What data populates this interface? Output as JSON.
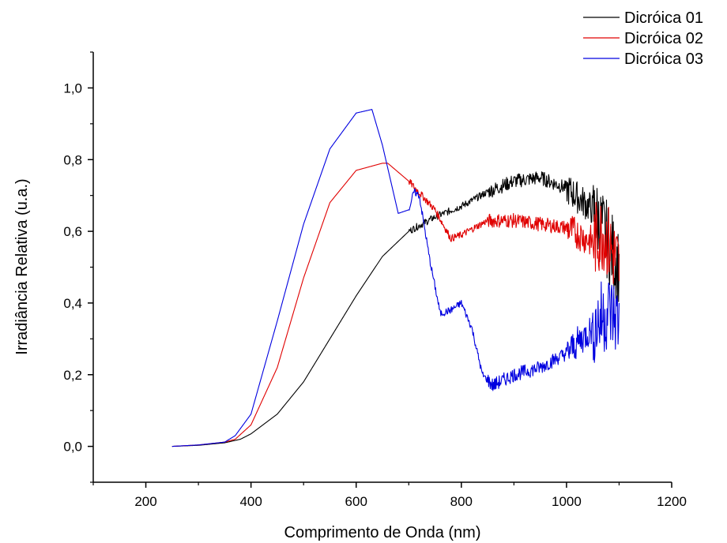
{
  "chart_data": {
    "type": "line",
    "xlabel": "Comprimento de Onda (nm)",
    "ylabel": "Irradiância Relativa (u.a.)",
    "xlim": [
      100,
      1200
    ],
    "ylim": [
      -0.1,
      1.1
    ],
    "x_ticks": [
      200,
      400,
      600,
      800,
      1000,
      1200
    ],
    "x_tick_labels": [
      "200",
      "400",
      "600",
      "800",
      "1000",
      "1200"
    ],
    "y_ticks": [
      0.0,
      0.2,
      0.4,
      0.6,
      0.8,
      1.0
    ],
    "y_tick_labels": [
      "0,0",
      "0,2",
      "0,4",
      "0,6",
      "0,8",
      "1,0"
    ],
    "grid": false,
    "legend_position": "top-right",
    "series": [
      {
        "name": "Dicróica 01",
        "color": "#000000",
        "x": [
          250,
          300,
          350,
          380,
          400,
          450,
          500,
          550,
          600,
          650,
          700,
          750,
          800,
          850,
          900,
          950,
          1000,
          1050,
          1070,
          1100
        ],
        "y": [
          0.0,
          0.003,
          0.01,
          0.02,
          0.035,
          0.09,
          0.18,
          0.3,
          0.42,
          0.53,
          0.6,
          0.64,
          0.67,
          0.71,
          0.74,
          0.75,
          0.72,
          0.66,
          0.6,
          0.5
        ]
      },
      {
        "name": "Dicróica 02",
        "color": "#e00000",
        "x": [
          250,
          300,
          350,
          370,
          400,
          450,
          500,
          550,
          600,
          650,
          660,
          700,
          750,
          780,
          800,
          850,
          900,
          950,
          1000,
          1050,
          1070,
          1100
        ],
        "y": [
          0.0,
          0.004,
          0.012,
          0.02,
          0.06,
          0.22,
          0.47,
          0.68,
          0.77,
          0.79,
          0.79,
          0.74,
          0.66,
          0.58,
          0.59,
          0.63,
          0.63,
          0.62,
          0.61,
          0.57,
          0.6,
          0.5
        ]
      },
      {
        "name": "Dicróica 03",
        "color": "#0000e0",
        "x": [
          250,
          300,
          350,
          370,
          400,
          450,
          500,
          550,
          600,
          630,
          650,
          680,
          700,
          710,
          720,
          740,
          760,
          780,
          800,
          820,
          840,
          860,
          900,
          950,
          1000,
          1050,
          1080,
          1100
        ],
        "y": [
          0.0,
          0.004,
          0.012,
          0.03,
          0.09,
          0.35,
          0.62,
          0.83,
          0.93,
          0.94,
          0.84,
          0.65,
          0.66,
          0.71,
          0.7,
          0.52,
          0.37,
          0.38,
          0.4,
          0.33,
          0.2,
          0.17,
          0.2,
          0.22,
          0.26,
          0.33,
          0.38,
          0.35
        ]
      }
    ]
  }
}
